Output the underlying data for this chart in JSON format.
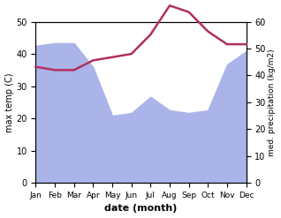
{
  "months": [
    "Jan",
    "Feb",
    "Mar",
    "Apr",
    "May",
    "Jun",
    "Jul",
    "Aug",
    "Sep",
    "Oct",
    "Nov",
    "Dec"
  ],
  "precipitation": [
    51,
    52,
    52,
    43,
    25,
    26,
    32,
    27,
    26,
    27,
    44,
    49
  ],
  "temperature": [
    36,
    35,
    35,
    38,
    39,
    40,
    46,
    55,
    53,
    47,
    43,
    43
  ],
  "precip_color": "#aab4e8",
  "temp_line_color": "#b03060",
  "ylabel_left": "max temp (C)",
  "ylabel_right": "med. precipitation (kg/m2)",
  "xlabel": "date (month)",
  "ylim_left": [
    0,
    50
  ],
  "ylim_right": [
    0,
    60
  ],
  "background_color": "#ffffff",
  "fig_width": 3.18,
  "fig_height": 2.47,
  "dpi": 100
}
